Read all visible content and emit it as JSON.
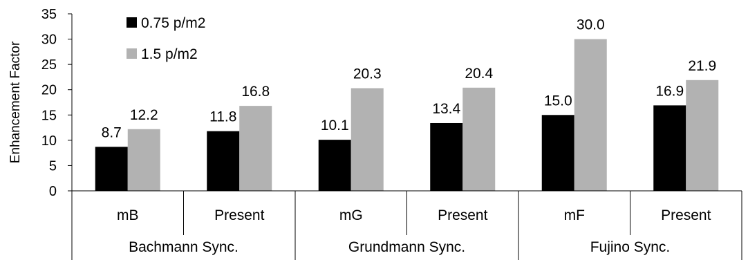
{
  "chart_data": {
    "type": "bar",
    "title": "",
    "ylabel": "Enhancement Factor",
    "xlabel": "",
    "ylim": [
      0,
      35
    ],
    "yticks": [
      0,
      5,
      10,
      15,
      20,
      25,
      30,
      35
    ],
    "grid": false,
    "legend_position": "top-left",
    "categories": [
      "mB",
      "Present",
      "mG",
      "Present",
      "mF",
      "Present"
    ],
    "groups": [
      {
        "label": "Bachmann Sync.",
        "categories": [
          "mB",
          "Present"
        ]
      },
      {
        "label": "Grundmann Sync.",
        "categories": [
          "mG",
          "Present"
        ]
      },
      {
        "label": "Fujino Sync.",
        "categories": [
          "mF",
          "Present"
        ]
      }
    ],
    "series": [
      {
        "name": "0.75 p/m2",
        "color": "#000000",
        "values": [
          8.7,
          11.8,
          10.1,
          13.4,
          15.0,
          16.9
        ],
        "labels": [
          "8.7",
          "11.8",
          "10.1",
          "13.4",
          "15.0",
          "16.9"
        ]
      },
      {
        "name": "1.5 p/m2",
        "color": "#b2b2b2",
        "values": [
          12.2,
          16.8,
          20.3,
          20.4,
          30.0,
          21.9
        ],
        "labels": [
          "12.2",
          "16.8",
          "20.3",
          "20.4",
          "30.0",
          "21.9"
        ]
      }
    ]
  }
}
